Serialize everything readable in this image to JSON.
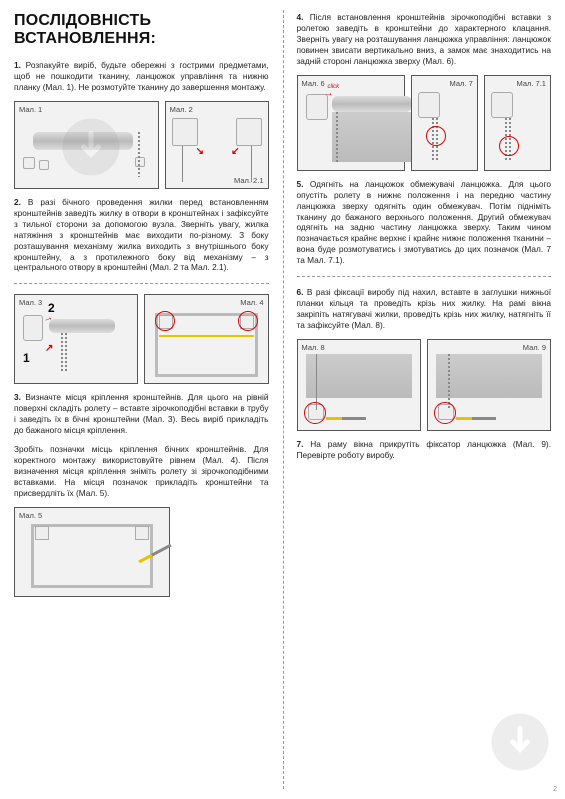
{
  "title": "ПОСЛІДОВНІСТЬ ВСТАНОВЛЕННЯ:",
  "left": {
    "p1": "<b>1.</b> Розпакуйте виріб, будьте обережні з гострими предметами, щоб не пошкодити тканину, ланцюжок управління та нижню планку (Мал. 1). Не розмотуйте тканину до завершення монтажу.",
    "p2": "<b>2.</b> В разі бічного проведення жилки перед встановленням кронштейнів заведіть жилку в отвори в кронштейнах і зафіксуйте з тильної сторони за допомогою вузла. Зверніть увагу, жилка натяжіння з кронштейнів має виходити по-різному. З боку розташування механізму жилка виходить з внутрішнього боку кронштейну, а з протилежного боку від механізму – з центрального отвору в кронштейні (Мал. 2 та Мал. 2.1).",
    "p3a": "<b>3.</b> Визначте місця кріплення кронштейнів. Для цього на рівній поверхні складіть ролету – вставте зірочкоподібні вставки в трубу і заведіть їх в бічні кронштейни (Мал. 3). Весь виріб прикладіть до бажаного місця кріплення.",
    "p3b": "Зробіть позначки місць кріплення бічних кронштейнів. Для коректного монтажу використовуйте рівнем (Мал. 4). Після визначення місця кріплення зніміть ролету зі зірочкоподібними вставками. На місця позначок прикладіть кронштейни та присвердліть їх (Мал. 5).",
    "fig1": "Мал. 1",
    "fig2": "Мал. 2",
    "fig21": "Мал. 2.1",
    "fig3": "Мал. 3",
    "fig4": "Мал. 4",
    "fig5": "Мал. 5"
  },
  "right": {
    "p4": "<b>4.</b> Після встановлення кронштейнів зірочкоподібні вставки з ролетою заведіть в кронштейни до характерного клацання. Зверніть увагу на розташування ланцюжка управління: ланцюжок повинен звисати вертикально вниз, а замок має знаходитись на задній стороні ланцюжка зверху (Мал. 6).",
    "p5": "<b>5.</b> Одягніть на ланцюжок обмежувачі ланцюжка. Для цього опустіть ролету в нижнє положення і на передню частину ланцюжка зверху одягніть один обмежувач. Потім підніміть тканину до бажаного верхнього положення. Другий обмежувач одягніть на задню частину ланцюжка зверху. Таким чином позначається крайнє верхнє і крайнє нижнє положення тканини – вона буде розмотуватись і змотуватись до цих позначок (Мал. 7 та Мал. 7.1).",
    "p6": "<b>6.</b> В разі фіксації виробу під нахил, вставте в заглушки нижньої планки кільця та проведіть крізь них жилку. На рамі вікна закріпіть натягувачі жилки, проведіть крізь них жилку, натягніть її та зафіксуйте (Мал. 8).",
    "p7": "<b>7.</b> На раму вікна прикрутіть фіксатор ланцюжка (Мал. 9). Перевірте роботу виробу.",
    "fig6": "Мал. 6",
    "fig7": "Мал. 7",
    "fig71": "Мал. 7.1",
    "fig8": "Мал. 8",
    "fig9": "Мал. 9",
    "click": "click",
    "pagenum": "2"
  },
  "nums": {
    "one": "1",
    "two": "2"
  },
  "colors": {
    "accent_red": "#d00000",
    "border": "#555555",
    "figbg": "#f2f2f2",
    "text": "#222222"
  }
}
